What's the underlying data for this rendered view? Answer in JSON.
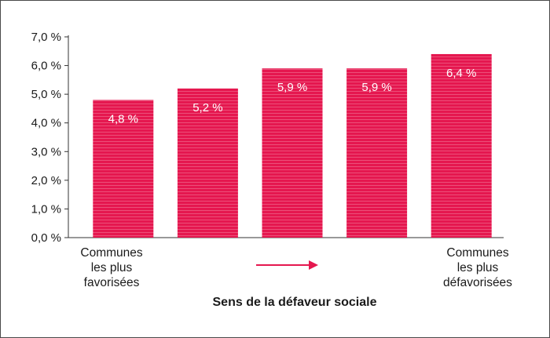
{
  "chart_data": {
    "type": "bar",
    "categories": [
      "",
      "",
      "",
      "",
      ""
    ],
    "values": [
      4.8,
      5.2,
      5.9,
      5.9,
      6.4
    ],
    "data_labels": [
      "4,8 %",
      "5,2 %",
      "5,9 %",
      "5,9 %",
      "6,4 %"
    ],
    "ylim": [
      0,
      7
    ],
    "yticks": [
      0,
      1,
      2,
      3,
      4,
      5,
      6,
      7
    ],
    "ytick_labels": [
      "0,0 %",
      "1,0 %",
      "2,0 %",
      "3,0 %",
      "4,0 %",
      "5,0 %",
      "6,0 %",
      "7,0 %"
    ],
    "xlabel": "Sens de la défaveur sociale",
    "left_annotation": [
      "Communes",
      "les plus",
      "favorisées"
    ],
    "right_annotation": [
      "Communes",
      "les plus",
      "défavorisées"
    ],
    "grid": false,
    "legend": "none",
    "colors": {
      "bar": "#e5174f",
      "bar_stripe": "#f27d9b",
      "arrow": "#e5174f",
      "axis": "#333333",
      "label_light": "#ffffff"
    }
  }
}
